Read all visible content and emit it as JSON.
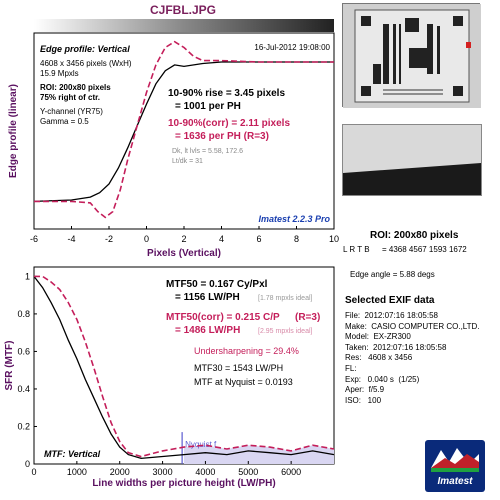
{
  "window": {
    "title": "CJFBL.JPG"
  },
  "roi_panel": {
    "title": "ROI: 200x80 pixels",
    "lrtb_label": "L R  T B",
    "lrtb_values": "= 4368 4567  1593 1672",
    "edge_angle": "Edge angle = 5.88 degs"
  },
  "exif": {
    "title": "Selected EXIF data",
    "rows": [
      "File:  2012:07:16 18:05:58",
      "Make:  CASIO COMPUTER CO.,LTD.",
      "Model:  EX-ZR300",
      "Taken:  2012:07:16 18:05:58",
      "Res:   4608 x 3456",
      "FL:",
      "Exp:   0.040 s  (1/25)",
      "Aper:  f/5.9",
      "ISO:   100"
    ]
  },
  "logo": {
    "text": "Imatest"
  },
  "chart_data": [
    {
      "type": "line",
      "title": "Edge profile: Vertical",
      "date": "16-Jul-2012 19:08:00",
      "xlabel": "Pixels (Vertical)",
      "ylabel": "Edge profile (linear)",
      "xlim": [
        -6,
        10
      ],
      "xticks": [
        "-6",
        "-4",
        "-2",
        "0",
        "2",
        "4",
        "6",
        "8",
        "10"
      ],
      "info_lines": [
        "4608 x 3456 pixels (WxH)",
        "15.9 Mpxls"
      ],
      "roi_lines": [
        "ROI: 200x80 pixels",
        "75% right of ctr."
      ],
      "channel_lines": [
        "Y-channel  (YR75)",
        "Gamma = 0.5"
      ],
      "results": {
        "rise": "10-90% rise = 3.45 pixels",
        "per_ph": "= 1001 per PH",
        "rise_corr": "10-90%(corr) = 2.11 pixels",
        "per_ph_corr": "= 1636 per PH  (R=3)",
        "dk_line": "Dk, lt lvls = 5.58, 172.6",
        "ltdk_line": "Lt/dk = 31"
      },
      "version": "Imatest 2.2.3 Pro",
      "series": [
        {
          "color": "#000000",
          "dash": "",
          "x": [
            -6,
            -4,
            -3,
            -2.5,
            -2,
            -1.5,
            -1,
            -0.5,
            0,
            0.5,
            1,
            1.5,
            2,
            3,
            4,
            6,
            8,
            10
          ],
          "y": [
            0.04,
            0.05,
            0.07,
            0.1,
            0.16,
            0.27,
            0.41,
            0.56,
            0.71,
            0.85,
            0.94,
            0.98,
            0.97,
            0.99,
            1.0,
            1.0,
            1.0,
            1.0
          ]
        },
        {
          "color": "#c41e5a",
          "dash": "6,3",
          "x": [
            -6,
            -4,
            -3,
            -2.6,
            -2.2,
            -1.8,
            -1.4,
            -1,
            -0.5,
            0,
            0.5,
            1,
            1.5,
            2,
            2.5,
            3,
            4,
            6,
            8,
            10
          ],
          "y": [
            0.04,
            0.04,
            0.03,
            -0.03,
            -0.07,
            -0.03,
            0.12,
            0.33,
            0.56,
            0.79,
            0.98,
            1.1,
            1.14,
            1.1,
            1.04,
            1.01,
            1.01,
            1.0,
            1.0,
            1.0
          ]
        }
      ]
    },
    {
      "type": "line",
      "title": "MTF: Vertical",
      "xlabel": "Line widths per picture height (LW/PH)",
      "ylabel": "SFR (MTF)",
      "xlim": [
        0,
        7000
      ],
      "ylim": [
        0,
        1
      ],
      "xticks": [
        "0",
        "1000",
        "2000",
        "3000",
        "4000",
        "5000",
        "6000"
      ],
      "yticks": [
        "0",
        "0.2",
        "0.4",
        "0.6",
        "0.8",
        "1"
      ],
      "results": {
        "mtf50": "MTF50 = 0.167 Cy/Pxl",
        "mtf50_lw": "= 1156 LW/PH",
        "ideal1": "[1.78 mpxls ideal]",
        "mtf50c": "MTF50(corr) = 0.215 C/P",
        "mtf50c_r": "(R=3)",
        "mtf50c_lw": "= 1486 LW/PH",
        "ideal2": "[2.95 mpxls ideal]",
        "usharp": "Undersharpening = 29.4%",
        "mtf30": "MTF30 = 1543 LW/PH",
        "nyq": "MTF at Nyquist = 0.0193"
      },
      "nyquist_label": "Nyquist f",
      "nyquist_x": 3456,
      "series": [
        {
          "color": "#000000",
          "dash": "",
          "x": [
            0,
            200,
            400,
            600,
            800,
            1000,
            1200,
            1400,
            1600,
            1800,
            2000,
            2200,
            2500,
            3000,
            3500,
            4000,
            4500,
            5000,
            5500,
            6000,
            6500,
            7000
          ],
          "y": [
            1.0,
            0.94,
            0.86,
            0.77,
            0.66,
            0.56,
            0.45,
            0.35,
            0.25,
            0.16,
            0.09,
            0.05,
            0.03,
            0.04,
            0.05,
            0.06,
            0.05,
            0.07,
            0.06,
            0.05,
            0.07,
            0.05
          ]
        },
        {
          "color": "#c41e5a",
          "dash": "6,3",
          "x": [
            0,
            200,
            400,
            600,
            800,
            1000,
            1200,
            1400,
            1600,
            1800,
            2000,
            2200,
            2500,
            3000,
            3500,
            4000,
            4500,
            5000,
            5500,
            6000,
            6500,
            7000
          ],
          "y": [
            1.0,
            1.0,
            0.97,
            0.93,
            0.86,
            0.77,
            0.65,
            0.51,
            0.36,
            0.22,
            0.12,
            0.06,
            0.04,
            0.07,
            0.09,
            0.1,
            0.08,
            0.1,
            0.09,
            0.07,
            0.1,
            0.08
          ]
        }
      ]
    }
  ]
}
